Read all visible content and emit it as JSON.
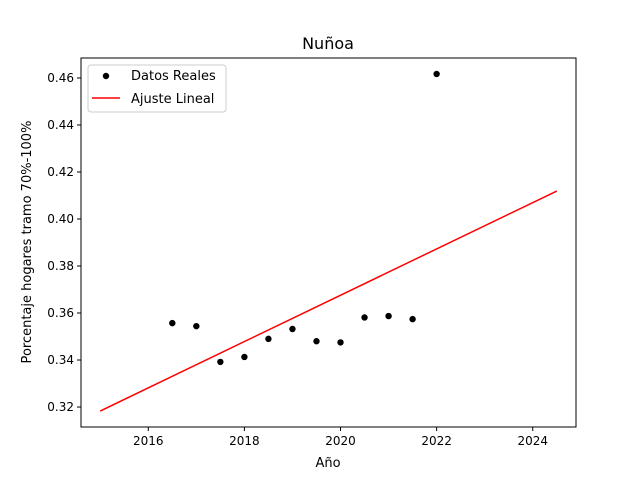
{
  "chart_data": {
    "type": "scatter",
    "title": "Nuñoa",
    "xlabel": "Año",
    "ylabel": "Porcentaje hogares tramo 70%-100%",
    "xlim": [
      2014.6,
      2024.9
    ],
    "ylim": [
      0.3115,
      0.4685
    ],
    "xticks": [
      2016,
      2018,
      2020,
      2022,
      2024
    ],
    "yticks": [
      0.32,
      0.34,
      0.36,
      0.38,
      0.4,
      0.42,
      0.44,
      0.46
    ],
    "xtick_labels": [
      "2016",
      "2018",
      "2020",
      "2022",
      "2024"
    ],
    "ytick_labels": [
      "0.32",
      "0.34",
      "0.36",
      "0.38",
      "0.40",
      "0.42",
      "0.44",
      "0.46"
    ],
    "legend_position": "upper-left",
    "series": [
      {
        "name": "Datos Reales",
        "kind": "scatter",
        "color": "#000000",
        "x": [
          2016.5,
          2017.0,
          2017.5,
          2018.0,
          2018.5,
          2019.0,
          2019.5,
          2020.0,
          2020.5,
          2021.0,
          2021.5,
          2022.0
        ],
        "y": [
          0.3557,
          0.3544,
          0.3392,
          0.3413,
          0.349,
          0.3532,
          0.348,
          0.3475,
          0.3581,
          0.3587,
          0.3574,
          0.4617
        ]
      },
      {
        "name": "Ajuste Lineal",
        "kind": "line",
        "color": "#ff0000",
        "x": [
          2015.0,
          2024.5
        ],
        "y": [
          0.3183,
          0.4119
        ]
      }
    ]
  }
}
